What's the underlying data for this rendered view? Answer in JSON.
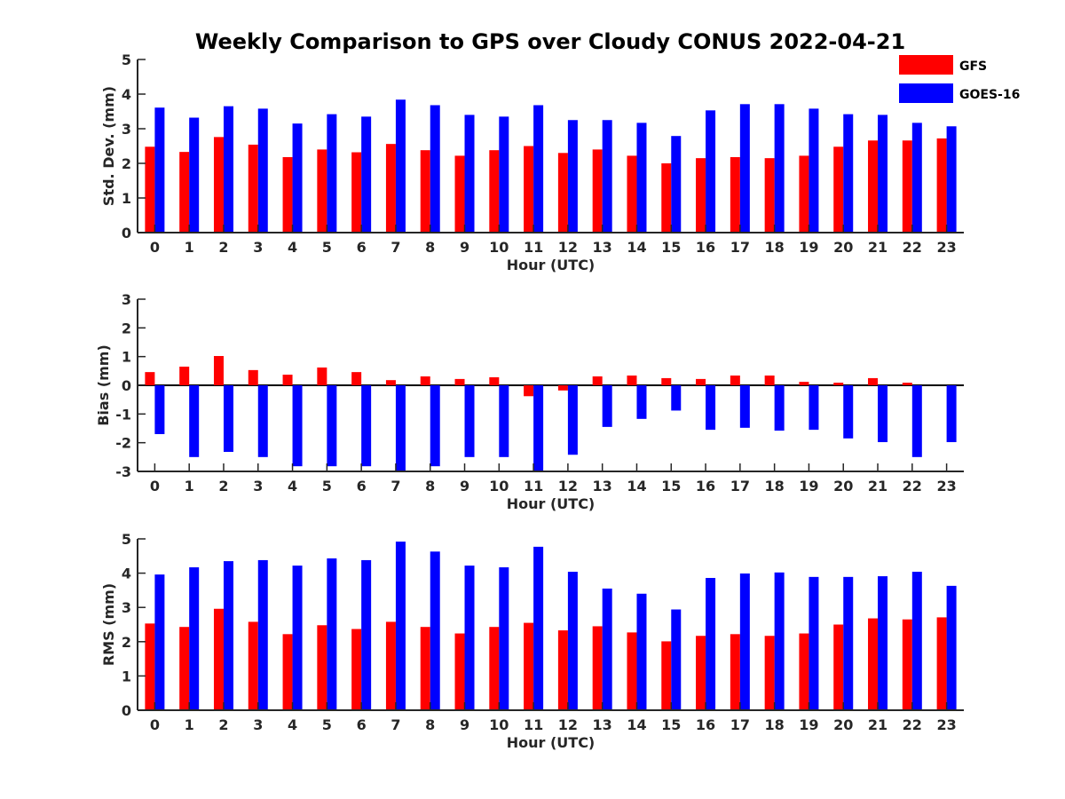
{
  "title": "Weekly Comparison to GPS over Cloudy CONUS 2022-04-21",
  "legend": {
    "position": "top-right",
    "entries": [
      {
        "label": "GFS",
        "color": "#ff0000"
      },
      {
        "label": "GOES-16",
        "color": "#0000ff"
      }
    ]
  },
  "chart_data": [
    {
      "type": "bar",
      "xlabel": "Hour (UTC)",
      "ylabel": "Std. Dev. (mm)",
      "ylim": [
        0,
        5
      ],
      "yticks": [
        0,
        1,
        2,
        3,
        4,
        5
      ],
      "categories": [
        "0",
        "1",
        "2",
        "3",
        "4",
        "5",
        "6",
        "7",
        "8",
        "9",
        "10",
        "11",
        "12",
        "13",
        "14",
        "15",
        "16",
        "17",
        "18",
        "19",
        "20",
        "21",
        "22",
        "23"
      ],
      "series": [
        {
          "name": "GFS",
          "color": "#ff0000",
          "values": [
            2.48,
            2.33,
            2.76,
            2.54,
            2.18,
            2.4,
            2.32,
            2.56,
            2.38,
            2.22,
            2.38,
            2.5,
            2.3,
            2.4,
            2.22,
            2.0,
            2.15,
            2.18,
            2.15,
            2.22,
            2.48,
            2.66,
            2.66,
            2.72
          ]
        },
        {
          "name": "GOES-16",
          "color": "#0000ff",
          "values": [
            3.61,
            3.32,
            3.65,
            3.58,
            3.15,
            3.42,
            3.35,
            3.84,
            3.68,
            3.4,
            3.35,
            3.68,
            3.25,
            3.25,
            3.17,
            2.79,
            3.53,
            3.71,
            3.71,
            3.58,
            3.42,
            3.4,
            3.17,
            3.07
          ]
        }
      ]
    },
    {
      "type": "bar",
      "xlabel": "Hour (UTC)",
      "ylabel": "Bias (mm)",
      "ylim": [
        -3,
        3
      ],
      "yticks": [
        -3,
        -2,
        -1,
        0,
        1,
        2,
        3
      ],
      "categories": [
        "0",
        "1",
        "2",
        "3",
        "4",
        "5",
        "6",
        "7",
        "8",
        "9",
        "10",
        "11",
        "12",
        "13",
        "14",
        "15",
        "16",
        "17",
        "18",
        "19",
        "20",
        "21",
        "22",
        "23"
      ],
      "series": [
        {
          "name": "GFS",
          "color": "#ff0000",
          "values": [
            0.46,
            0.65,
            1.02,
            0.53,
            0.37,
            0.62,
            0.46,
            0.18,
            0.31,
            0.22,
            0.28,
            -0.38,
            -0.18,
            0.31,
            0.34,
            0.25,
            0.22,
            0.34,
            0.34,
            0.12,
            0.09,
            0.25,
            0.09,
            0.0
          ]
        },
        {
          "name": "GOES-16",
          "color": "#0000ff",
          "values": [
            -1.7,
            -2.5,
            -2.32,
            -2.5,
            -2.82,
            -2.82,
            -2.82,
            -3.0,
            -2.82,
            -2.5,
            -2.5,
            -3.0,
            -2.42,
            -1.45,
            -1.17,
            -0.88,
            -1.55,
            -1.48,
            -1.58,
            -1.55,
            -1.85,
            -1.98,
            -2.5,
            -1.98
          ]
        }
      ]
    },
    {
      "type": "bar",
      "xlabel": "Hour (UTC)",
      "ylabel": "RMS (mm)",
      "ylim": [
        0,
        5
      ],
      "yticks": [
        0,
        1,
        2,
        3,
        4,
        5
      ],
      "categories": [
        "0",
        "1",
        "2",
        "3",
        "4",
        "5",
        "6",
        "7",
        "8",
        "9",
        "10",
        "11",
        "12",
        "13",
        "14",
        "15",
        "16",
        "17",
        "18",
        "19",
        "20",
        "21",
        "22",
        "23"
      ],
      "series": [
        {
          "name": "GFS",
          "color": "#ff0000",
          "values": [
            2.53,
            2.43,
            2.96,
            2.58,
            2.22,
            2.48,
            2.37,
            2.58,
            2.43,
            2.24,
            2.43,
            2.55,
            2.33,
            2.45,
            2.27,
            2.01,
            2.17,
            2.22,
            2.17,
            2.24,
            2.5,
            2.68,
            2.65,
            2.71
          ]
        },
        {
          "name": "GOES-16",
          "color": "#0000ff",
          "values": [
            3.96,
            4.17,
            4.35,
            4.38,
            4.22,
            4.43,
            4.38,
            4.92,
            4.63,
            4.22,
            4.17,
            4.77,
            4.04,
            3.55,
            3.4,
            2.94,
            3.86,
            3.99,
            4.02,
            3.89,
            3.89,
            3.91,
            4.04,
            3.63
          ]
        }
      ]
    }
  ]
}
